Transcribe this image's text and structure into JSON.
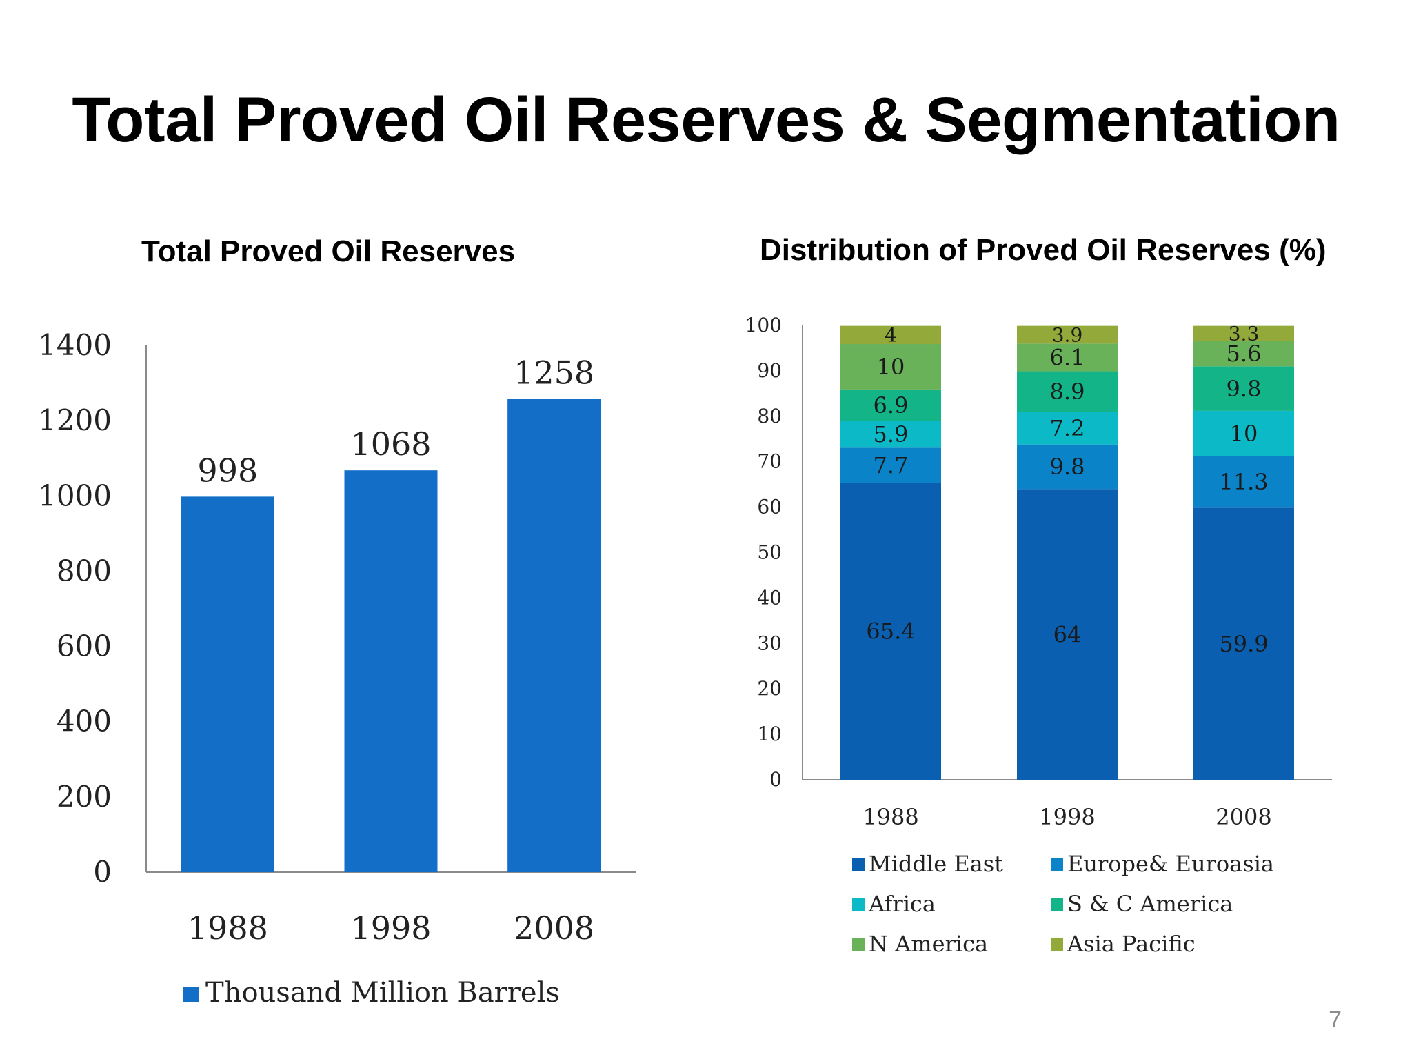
{
  "slide": {
    "title": "Total Proved Oil Reserves & Segmentation",
    "page_number": "7"
  },
  "chart_data": [
    {
      "type": "bar",
      "title": "Total Proved Oil Reserves",
      "categories": [
        "1988",
        "1998",
        "2008"
      ],
      "series": [
        {
          "name": "Thousand Million Barrels",
          "values": [
            998,
            1068,
            1258
          ],
          "color": "#136ec8"
        }
      ],
      "ylim": [
        0,
        1400
      ],
      "yticks": [
        0,
        200,
        400,
        600,
        800,
        1000,
        1200,
        1400
      ],
      "grid": false,
      "legend": "bottom"
    },
    {
      "type": "bar",
      "stacked": true,
      "title": "Distribution of Proved Oil Reserves (%)",
      "categories": [
        "1988",
        "1998",
        "2008"
      ],
      "series": [
        {
          "name": "Middle East",
          "values": [
            65.4,
            64,
            59.9
          ],
          "color": "#0b5fb0"
        },
        {
          "name": "Europe& Euroasia",
          "values": [
            7.7,
            9.8,
            11.3
          ],
          "color": "#0a83c8"
        },
        {
          "name": "Africa",
          "values": [
            5.9,
            7.2,
            10
          ],
          "color": "#0cbac7"
        },
        {
          "name": "S & C America",
          "values": [
            6.9,
            8.9,
            9.8
          ],
          "color": "#13b487"
        },
        {
          "name": "N America",
          "values": [
            10,
            6.1,
            5.6
          ],
          "color": "#6ab25a"
        },
        {
          "name": "Asia Pacific",
          "values": [
            4,
            3.9,
            3.3
          ],
          "color": "#93a93a"
        }
      ],
      "ylim": [
        0,
        100
      ],
      "yticks": [
        0,
        10,
        20,
        30,
        40,
        50,
        60,
        70,
        80,
        90,
        100
      ],
      "grid": false,
      "legend": "bottom"
    }
  ]
}
